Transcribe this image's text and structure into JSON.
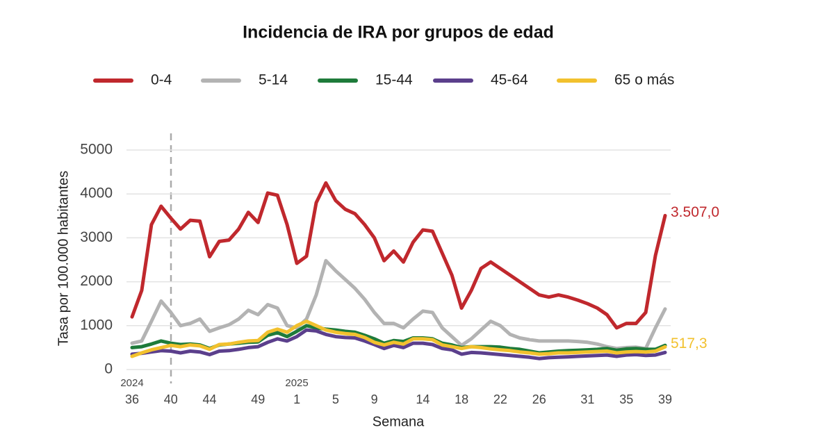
{
  "chart_data": {
    "type": "line",
    "title": "Incidencia de IRA por grupos de edad",
    "x_label": "Semana",
    "y_label": "Tasa por 100.000 habitantes",
    "year_labels": [
      "2024",
      "2025"
    ],
    "categories": [
      "36",
      null,
      null,
      null,
      "40",
      null,
      null,
      null,
      "44",
      null,
      null,
      null,
      null,
      "49",
      null,
      null,
      null,
      "1",
      null,
      null,
      null,
      "5",
      null,
      null,
      null,
      "9",
      null,
      null,
      null,
      null,
      "14",
      null,
      null,
      null,
      "18",
      null,
      null,
      null,
      "22",
      null,
      null,
      null,
      "26",
      null,
      null,
      null,
      null,
      "31",
      null,
      null,
      null,
      "35",
      null,
      null,
      null,
      "39"
    ],
    "ylim": [
      0,
      5000
    ],
    "yticks": [
      0,
      1000,
      2000,
      3000,
      4000,
      5000
    ],
    "grid": true,
    "legend": "top",
    "series": [
      {
        "name": "0-4",
        "color": "#c0282d",
        "values": [
          1200,
          1800,
          3300,
          3720,
          3450,
          3200,
          3400,
          3380,
          2570,
          2920,
          2950,
          3200,
          3580,
          3350,
          4020,
          3970,
          3300,
          2420,
          2580,
          3800,
          4250,
          3850,
          3650,
          3550,
          3300,
          3000,
          2480,
          2700,
          2450,
          2900,
          3180,
          3150,
          2650,
          2150,
          1400,
          1800,
          2300,
          2450,
          2300,
          2150,
          2000,
          1850,
          1700,
          1650,
          1700,
          1650,
          1580,
          1500,
          1400,
          1250,
          950,
          1050,
          1050,
          1300,
          2600,
          3507.0
        ],
        "value_labels": [
          null,
          null,
          null,
          null,
          null,
          null,
          null,
          null,
          null,
          null,
          null,
          null,
          null,
          null,
          null,
          null,
          null,
          null,
          null,
          null,
          null,
          null,
          null,
          null,
          null,
          null,
          null,
          null,
          null,
          null,
          null,
          null,
          null,
          null,
          null,
          null,
          null,
          null,
          null,
          null,
          null,
          null,
          null,
          null,
          null,
          null,
          null,
          null,
          null,
          null,
          null,
          null,
          null,
          null,
          null,
          "3.507,0"
        ]
      },
      {
        "name": "5-14",
        "color": "#b3b3b3",
        "values": [
          600,
          650,
          1100,
          1560,
          1300,
          1000,
          1050,
          1150,
          870,
          950,
          1020,
          1150,
          1350,
          1250,
          1480,
          1400,
          1000,
          950,
          1150,
          1700,
          2480,
          2250,
          2050,
          1850,
          1600,
          1300,
          1050,
          1050,
          950,
          1150,
          1330,
          1300,
          950,
          750,
          550,
          700,
          900,
          1100,
          1000,
          800,
          720,
          680,
          650,
          650,
          650,
          650,
          640,
          620,
          580,
          520,
          480,
          500,
          510,
          480,
          950,
          1380
        ]
      },
      {
        "name": "15-44",
        "color": "#1e7b3a",
        "values": [
          500,
          520,
          580,
          650,
          600,
          570,
          580,
          560,
          480,
          560,
          580,
          600,
          620,
          630,
          780,
          840,
          750,
          870,
          1000,
          950,
          920,
          900,
          870,
          850,
          780,
          700,
          600,
          660,
          640,
          720,
          720,
          700,
          600,
          560,
          500,
          520,
          520,
          520,
          510,
          480,
          460,
          420,
          380,
          400,
          420,
          430,
          440,
          450,
          460,
          480,
          440,
          470,
          480,
          460,
          460,
          550
        ]
      },
      {
        "name": "45-64",
        "color": "#5b3f8c",
        "values": [
          350,
          370,
          400,
          430,
          420,
          380,
          420,
          400,
          340,
          420,
          430,
          460,
          500,
          520,
          620,
          700,
          650,
          750,
          900,
          880,
          800,
          750,
          730,
          720,
          650,
          570,
          480,
          550,
          500,
          600,
          600,
          570,
          480,
          450,
          350,
          390,
          380,
          360,
          340,
          320,
          300,
          280,
          250,
          270,
          280,
          290,
          300,
          310,
          320,
          330,
          300,
          330,
          340,
          320,
          330,
          390
        ]
      },
      {
        "name": "65 o más",
        "color": "#f2c12e",
        "values": [
          300,
          380,
          450,
          500,
          550,
          520,
          560,
          540,
          460,
          570,
          580,
          620,
          650,
          660,
          850,
          920,
          850,
          1000,
          1100,
          1000,
          900,
          850,
          820,
          800,
          730,
          620,
          560,
          620,
          580,
          700,
          700,
          680,
          560,
          520,
          480,
          520,
          500,
          470,
          450,
          430,
          400,
          380,
          350,
          360,
          380,
          380,
          390,
          400,
          410,
          420,
          380,
          400,
          410,
          400,
          420,
          517.3
        ],
        "value_labels": [
          null,
          null,
          null,
          null,
          null,
          null,
          null,
          null,
          null,
          null,
          null,
          null,
          null,
          null,
          null,
          null,
          null,
          null,
          null,
          null,
          null,
          null,
          null,
          null,
          null,
          null,
          null,
          null,
          null,
          null,
          null,
          null,
          null,
          null,
          null,
          null,
          null,
          null,
          null,
          null,
          null,
          null,
          null,
          null,
          null,
          null,
          null,
          null,
          null,
          null,
          null,
          null,
          null,
          null,
          null,
          "517,3"
        ]
      }
    ]
  }
}
